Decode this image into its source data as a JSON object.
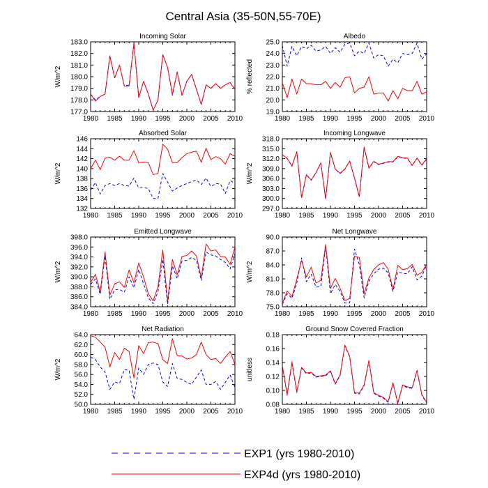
{
  "figure": {
    "title": "Central Asia (35-50N,55-70E)",
    "legend": [
      {
        "label": "EXP1 (yrs 1980-2010)",
        "color": "#0000ff",
        "dash": true
      },
      {
        "label": "EXP4d (yrs 1980-2010)",
        "color": "#ff0000",
        "dash": false
      }
    ]
  },
  "chart_data": [
    {
      "type": "line",
      "title": "Incoming Solar",
      "ylabel": "W/m^2",
      "xlim": [
        1980,
        2010
      ],
      "ylim": [
        177,
        183
      ],
      "xticks": [
        "1980",
        "1985",
        "1990",
        "1995",
        "2000",
        "2005",
        "2010"
      ],
      "yticks": [
        "177.0",
        "178.0",
        "179.0",
        "180.0",
        "181.0",
        "182.0",
        "183.0"
      ],
      "x": [
        1980,
        1981,
        1982,
        1983,
        1984,
        1985,
        1986,
        1987,
        1988,
        1989,
        1990,
        1991,
        1992,
        1993,
        1994,
        1995,
        1996,
        1997,
        1998,
        1999,
        2000,
        2001,
        2002,
        2003,
        2004,
        2005,
        2006,
        2007,
        2008,
        2009,
        2010
      ],
      "series": [
        {
          "name": "EXP1 (yrs 1980-2010)",
          "color": "#0000ff",
          "dash": true,
          "values": [
            178.5,
            178.0,
            178.3,
            178.5,
            181.8,
            179.9,
            181.0,
            179.2,
            179.3,
            182.9,
            178.2,
            179.6,
            178.5,
            177.1,
            178.0,
            181.9,
            180.8,
            178.4,
            180.4,
            178.4,
            179.6,
            180.2,
            178.9,
            177.6,
            179.3,
            179.0,
            179.4,
            179.0,
            179.3,
            179.5,
            178.9
          ]
        },
        {
          "name": "EXP4d (yrs 1980-2010)",
          "color": "#ff0000",
          "dash": false,
          "values": [
            178.5,
            177.9,
            178.3,
            178.5,
            181.8,
            179.9,
            181.0,
            179.2,
            179.2,
            182.9,
            178.2,
            179.6,
            178.5,
            177.1,
            178.0,
            181.9,
            180.8,
            178.5,
            180.4,
            178.4,
            179.6,
            180.2,
            178.9,
            177.6,
            179.3,
            179.0,
            179.4,
            179.0,
            179.3,
            179.5,
            178.9
          ]
        }
      ]
    },
    {
      "type": "line",
      "title": "Albedo",
      "ylabel": "% reflected",
      "xlim": [
        1980,
        2010
      ],
      "ylim": [
        19,
        25
      ],
      "xticks": [
        "1980",
        "1985",
        "1990",
        "1995",
        "2000",
        "2005",
        "2010"
      ],
      "yticks": [
        "19.0",
        "20.0",
        "21.0",
        "22.0",
        "23.0",
        "24.0",
        "25.0"
      ],
      "x": [
        1980,
        1981,
        1982,
        1983,
        1984,
        1985,
        1986,
        1987,
        1988,
        1989,
        1990,
        1991,
        1992,
        1993,
        1994,
        1995,
        1996,
        1997,
        1998,
        1999,
        2000,
        2001,
        2002,
        2003,
        2004,
        2005,
        2006,
        2007,
        2008,
        2009,
        2010
      ],
      "series": [
        {
          "name": "EXP1 (yrs 1980-2010)",
          "color": "#0000ff",
          "dash": true,
          "values": [
            24.7,
            22.9,
            24.6,
            23.8,
            24.6,
            24.4,
            24.7,
            24.2,
            24.3,
            24.6,
            24.0,
            24.5,
            24.1,
            24.8,
            24.9,
            23.8,
            24.2,
            24.0,
            24.9,
            23.6,
            23.9,
            23.8,
            22.9,
            23.5,
            23.2,
            24.0,
            23.9,
            24.0,
            24.9,
            23.5,
            24.0
          ]
        },
        {
          "name": "EXP4d (yrs 1980-2010)",
          "color": "#ff0000",
          "dash": false,
          "values": [
            21.5,
            20.2,
            21.8,
            20.5,
            21.8,
            21.4,
            21.4,
            21.3,
            21.3,
            21.6,
            21.0,
            21.5,
            21.1,
            21.9,
            22.0,
            20.6,
            21.0,
            21.1,
            22.0,
            20.5,
            20.6,
            20.6,
            19.9,
            20.8,
            20.1,
            21.0,
            20.8,
            20.8,
            21.6,
            20.5,
            20.7
          ]
        }
      ]
    },
    {
      "type": "line",
      "title": "Absorbed Solar",
      "ylabel": "W/m^2",
      "xlim": [
        1980,
        2010
      ],
      "ylim": [
        132,
        146
      ],
      "xticks": [
        "1980",
        "1985",
        "1990",
        "1995",
        "2000",
        "2005",
        "2010"
      ],
      "yticks": [
        "132",
        "134",
        "136",
        "138",
        "140",
        "142",
        "144",
        "146"
      ],
      "x": [
        1980,
        1981,
        1982,
        1983,
        1984,
        1985,
        1986,
        1987,
        1988,
        1989,
        1990,
        1991,
        1992,
        1993,
        1994,
        1995,
        1996,
        1997,
        1998,
        1999,
        2000,
        2001,
        2002,
        2003,
        2004,
        2005,
        2006,
        2007,
        2008,
        2009,
        2010
      ],
      "series": [
        {
          "name": "EXP1 (yrs 1980-2010)",
          "color": "#0000ff",
          "dash": true,
          "values": [
            135.7,
            137.2,
            134.9,
            136.6,
            137.0,
            136.6,
            137.0,
            136.6,
            136.5,
            138.1,
            136.1,
            136.2,
            136.0,
            134.0,
            134.0,
            139.0,
            137.3,
            135.5,
            136.1,
            136.6,
            137.0,
            137.4,
            137.7,
            136.8,
            138.1,
            136.4,
            137.0,
            136.9,
            135.0,
            137.6,
            137.0
          ]
        },
        {
          "name": "EXP4d (yrs 1980-2010)",
          "color": "#ff0000",
          "dash": false,
          "values": [
            140.0,
            141.7,
            139.8,
            142.1,
            142.3,
            141.7,
            142.5,
            141.7,
            141.7,
            143.6,
            141.2,
            141.3,
            141.2,
            138.8,
            139.0,
            144.9,
            143.9,
            141.2,
            141.2,
            142.2,
            143.0,
            143.3,
            143.5,
            141.3,
            144.1,
            141.8,
            142.4,
            142.0,
            140.9,
            143.0,
            142.5
          ]
        }
      ]
    },
    {
      "type": "line",
      "title": "Incoming Longwave",
      "ylabel": "W/m^2",
      "xlim": [
        1980,
        2010
      ],
      "ylim": [
        297,
        318
      ],
      "xticks": [
        "1980",
        "1985",
        "1990",
        "1995",
        "2000",
        "2005",
        "2010"
      ],
      "yticks": [
        "297.0",
        "300.0",
        "303.0",
        "306.0",
        "309.0",
        "312.0",
        "315.0",
        "318.0"
      ],
      "x": [
        1980,
        1981,
        1982,
        1983,
        1984,
        1985,
        1986,
        1987,
        1988,
        1989,
        1990,
        1991,
        1992,
        1993,
        1994,
        1995,
        1996,
        1997,
        1998,
        1999,
        2000,
        2001,
        2002,
        2003,
        2004,
        2005,
        2006,
        2007,
        2008,
        2009,
        2010
      ],
      "series": [
        {
          "name": "EXP1 (yrs 1980-2010)",
          "color": "#0000ff",
          "dash": true,
          "values": [
            313.2,
            312.0,
            309.7,
            314.1,
            300.1,
            307.1,
            305.5,
            307.7,
            310.6,
            299.8,
            313.8,
            308.8,
            307.5,
            308.8,
            311.2,
            306.1,
            300.4,
            315.3,
            309.1,
            311.1,
            310.2,
            310.6,
            311.0,
            311.0,
            312.6,
            312.2,
            312.1,
            309.9,
            312.1,
            310.0,
            311.8
          ]
        },
        {
          "name": "EXP4d (yrs 1980-2010)",
          "color": "#ff0000",
          "dash": false,
          "values": [
            313.2,
            312.1,
            309.8,
            314.1,
            300.3,
            307.2,
            305.6,
            307.8,
            310.7,
            300.0,
            313.9,
            308.9,
            307.6,
            308.9,
            311.3,
            306.2,
            300.6,
            315.5,
            309.2,
            311.2,
            310.3,
            310.7,
            311.1,
            311.1,
            312.7,
            312.3,
            312.2,
            310.0,
            312.2,
            310.1,
            312.0
          ]
        }
      ]
    },
    {
      "type": "line",
      "title": "Emitted Longwave",
      "ylabel": "W/m^2",
      "xlim": [
        1980,
        2010
      ],
      "ylim": [
        384,
        398
      ],
      "xticks": [
        "1980",
        "1985",
        "1990",
        "1995",
        "2000",
        "2005",
        "2010"
      ],
      "yticks": [
        "384.0",
        "386.0",
        "388.0",
        "390.0",
        "392.0",
        "394.0",
        "396.0",
        "398.0"
      ],
      "x": [
        1980,
        1981,
        1982,
        1983,
        1984,
        1985,
        1986,
        1987,
        1988,
        1989,
        1990,
        1991,
        1992,
        1993,
        1994,
        1995,
        1996,
        1997,
        1998,
        1999,
        2000,
        2001,
        2002,
        2003,
        2004,
        2005,
        2006,
        2007,
        2008,
        2009,
        2010
      ],
      "series": [
        {
          "name": "EXP1 (yrs 1980-2010)",
          "color": "#0000ff",
          "dash": true,
          "values": [
            388.5,
            389.6,
            386.5,
            394.2,
            385.5,
            387.4,
            387.5,
            386.9,
            390.0,
            387.8,
            391.5,
            388.6,
            385.8,
            384.6,
            387.0,
            393.5,
            384.5,
            392.2,
            389.6,
            393.2,
            393.3,
            393.9,
            393.3,
            389.3,
            395.0,
            394.4,
            394.2,
            393.5,
            392.9,
            391.6,
            394.7
          ]
        },
        {
          "name": "EXP4d (yrs 1980-2010)",
          "color": "#ff0000",
          "dash": false,
          "values": [
            388.9,
            390.5,
            387.0,
            395.0,
            386.3,
            388.6,
            389.0,
            387.9,
            391.4,
            388.8,
            392.8,
            390.0,
            386.6,
            385.2,
            388.0,
            395.4,
            385.1,
            393.5,
            390.4,
            394.1,
            394.3,
            395.2,
            394.2,
            389.8,
            396.6,
            395.2,
            395.4,
            394.1,
            394.0,
            392.5,
            396.0
          ]
        }
      ]
    },
    {
      "type": "line",
      "title": "Net Longwave",
      "ylabel": "W/m^2",
      "xlim": [
        1980,
        2010
      ],
      "ylim": [
        75,
        90
      ],
      "xticks": [
        "1980",
        "1985",
        "1990",
        "1995",
        "2000",
        "2005",
        "2010"
      ],
      "yticks": [
        "75.0",
        "78.0",
        "81.0",
        "84.0",
        "87.0",
        "90.0"
      ],
      "x": [
        1980,
        1981,
        1982,
        1983,
        1984,
        1985,
        1986,
        1987,
        1988,
        1989,
        1990,
        1991,
        1992,
        1993,
        1994,
        1995,
        1996,
        1997,
        1998,
        1999,
        2000,
        2001,
        2002,
        2003,
        2004,
        2005,
        2006,
        2007,
        2008,
        2009,
        2010
      ],
      "series": [
        {
          "name": "EXP1 (yrs 1980-2010)",
          "color": "#0000ff",
          "dash": true,
          "values": [
            75.5,
            77.8,
            76.8,
            80.1,
            85.5,
            80.4,
            82.0,
            79.2,
            79.4,
            87.9,
            77.8,
            79.8,
            78.3,
            75.8,
            75.8,
            87.4,
            84.1,
            76.9,
            80.5,
            82.1,
            83.1,
            83.3,
            82.3,
            78.3,
            82.5,
            82.2,
            82.1,
            83.6,
            80.8,
            81.6,
            84.0
          ]
        },
        {
          "name": "EXP4d (yrs 1980-2010)",
          "color": "#ff0000",
          "dash": false,
          "values": [
            75.7,
            78.4,
            77.2,
            80.9,
            85.0,
            81.4,
            83.5,
            80.1,
            80.7,
            88.4,
            78.9,
            81.1,
            79.0,
            76.3,
            76.8,
            85.9,
            85.6,
            77.8,
            81.2,
            83.0,
            84.0,
            84.5,
            83.1,
            78.7,
            83.9,
            83.0,
            83.2,
            84.1,
            81.8,
            82.4,
            84.2
          ]
        }
      ]
    },
    {
      "type": "line",
      "title": "Net Radiation",
      "ylabel": "W/m^2",
      "xlim": [
        1980,
        2010
      ],
      "ylim": [
        50,
        64
      ],
      "xticks": [
        "1980",
        "1985",
        "1990",
        "1995",
        "2000",
        "2005",
        "2010"
      ],
      "yticks": [
        "50.0",
        "52.0",
        "54.0",
        "56.0",
        "58.0",
        "60.0",
        "62.0",
        "64.0"
      ],
      "x": [
        1980,
        1981,
        1982,
        1983,
        1984,
        1985,
        1986,
        1987,
        1988,
        1989,
        1990,
        1991,
        1992,
        1993,
        1994,
        1995,
        1996,
        1997,
        1998,
        1999,
        2000,
        2001,
        2002,
        2003,
        2004,
        2005,
        2006,
        2007,
        2008,
        2009,
        2010
      ],
      "series": [
        {
          "name": "EXP1 (yrs 1980-2010)",
          "color": "#0000ff",
          "dash": true,
          "values": [
            59.5,
            59.0,
            57.5,
            56.5,
            53.0,
            54.5,
            54.2,
            57.0,
            56.8,
            51.0,
            57.3,
            56.0,
            58.0,
            58.3,
            58.0,
            54.5,
            53.6,
            58.2,
            55.2,
            55.0,
            54.4,
            54.0,
            55.5,
            56.9,
            54.0,
            54.0,
            54.6,
            53.0,
            54.4,
            55.9,
            53.4
          ]
        },
        {
          "name": "EXP4d (yrs 1980-2010)",
          "color": "#ff0000",
          "dash": false,
          "values": [
            63.8,
            63.5,
            62.5,
            61.5,
            57.5,
            60.4,
            59.0,
            61.3,
            60.6,
            55.3,
            61.8,
            60.2,
            62.4,
            62.5,
            62.2,
            59.0,
            58.2,
            63.2,
            59.8,
            59.7,
            59.1,
            59.3,
            60.0,
            62.5,
            60.0,
            59.0,
            59.2,
            58.2,
            59.5,
            60.6,
            58.0
          ]
        }
      ]
    },
    {
      "type": "line",
      "title": "Ground Snow Covered Fraction",
      "ylabel": "unitless",
      "xlim": [
        1980,
        2010
      ],
      "ylim": [
        0.08,
        0.18
      ],
      "xticks": [
        "1980",
        "1985",
        "1990",
        "1995",
        "2000",
        "2005",
        "2010"
      ],
      "yticks": [
        "0.08",
        "0.10",
        "0.12",
        "0.14",
        "0.16",
        "0.18"
      ],
      "x": [
        1980,
        1981,
        1982,
        1983,
        1984,
        1985,
        1986,
        1987,
        1988,
        1989,
        1990,
        1991,
        1992,
        1993,
        1994,
        1995,
        1996,
        1997,
        1998,
        1999,
        2000,
        2001,
        2002,
        2003,
        2004,
        2005,
        2006,
        2007,
        2008,
        2009,
        2010
      ],
      "series": [
        {
          "name": "EXP1 (yrs 1980-2010)",
          "color": "#0000ff",
          "dash": true,
          "values": [
            0.135,
            0.093,
            0.14,
            0.097,
            0.132,
            0.124,
            0.125,
            0.119,
            0.12,
            0.121,
            0.127,
            0.109,
            0.121,
            0.164,
            0.148,
            0.096,
            0.095,
            0.107,
            0.142,
            0.096,
            0.092,
            0.089,
            0.083,
            0.11,
            0.081,
            0.107,
            0.104,
            0.103,
            0.128,
            0.093,
            0.082
          ]
        },
        {
          "name": "EXP4d (yrs 1980-2010)",
          "color": "#ff0000",
          "dash": false,
          "values": [
            0.136,
            0.094,
            0.141,
            0.098,
            0.133,
            0.125,
            0.126,
            0.12,
            0.121,
            0.122,
            0.128,
            0.11,
            0.122,
            0.165,
            0.149,
            0.097,
            0.096,
            0.108,
            0.143,
            0.097,
            0.093,
            0.09,
            0.084,
            0.111,
            0.082,
            0.108,
            0.105,
            0.104,
            0.129,
            0.094,
            0.083
          ]
        }
      ]
    }
  ]
}
